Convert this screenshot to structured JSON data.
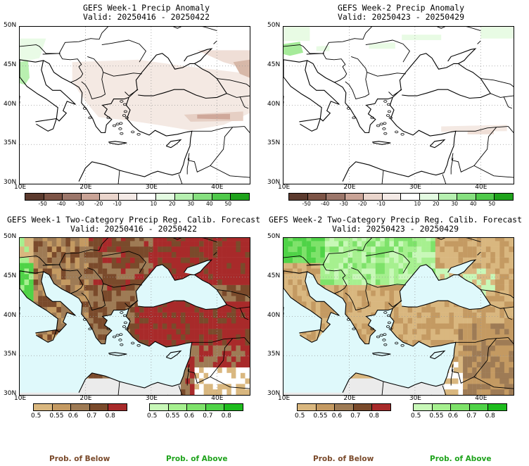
{
  "panels": [
    {
      "id": "p1",
      "title": "GEFS Week-1 Precip Anomaly",
      "valid": "Valid: 20250416 - 20250422"
    },
    {
      "id": "p2",
      "title": "GEFS Week-2 Precip Anomaly",
      "valid": "Valid: 20250423 - 20250429"
    },
    {
      "id": "p3",
      "title": "GEFS Week-1 Two-Category Precip Reg. Calib. Forecast",
      "valid": "Valid: 20250416 - 20250422"
    },
    {
      "id": "p4",
      "title": "GEFS Week-2 Two-Category Precip Reg. Calib. Forecast",
      "valid": "Valid: 20250423 - 20250429"
    }
  ],
  "axes": {
    "lat_labels": [
      "50N",
      "45N",
      "40N",
      "35N",
      "30N"
    ],
    "lon_labels": [
      "10E",
      "20E",
      "30E",
      "40E"
    ]
  },
  "anomaly_colorbar": {
    "ticks": [
      "-50",
      "-40",
      "-30",
      "-20",
      "-10",
      "10",
      "20",
      "30",
      "40",
      "50"
    ],
    "colors": [
      "#5c3a2e",
      "#7d5446",
      "#9c766a",
      "#c9a396",
      "#ead5cc",
      "#f4eae6",
      "#ffffff",
      "#e4fbe2",
      "#b6f0b0",
      "#86e07f",
      "#4fc94a",
      "#1fa31c"
    ]
  },
  "prob_below_bar": {
    "ticks": [
      "0.5",
      "0.55",
      "0.6",
      "0.7",
      "0.8"
    ],
    "colors": [
      "#d9b77f",
      "#c49a62",
      "#9e7b55",
      "#7a4a2b",
      "#a82a2a"
    ]
  },
  "prob_above_bar": {
    "ticks": [
      "0.5",
      "0.55",
      "0.6",
      "0.7",
      "0.8"
    ],
    "colors": [
      "#c8f8b8",
      "#a6f08f",
      "#7ee26a",
      "#4fd347",
      "#1ebc1e"
    ]
  },
  "map_colors": {
    "sea": "#dff9fb",
    "land": "#ffffff",
    "nodata": "#ebebeb"
  },
  "legend_labels": {
    "below": "Prob. of Below",
    "above": "Prob. of Above",
    "below_color": "#7a4a2b",
    "above_color": "#1fa31c"
  }
}
